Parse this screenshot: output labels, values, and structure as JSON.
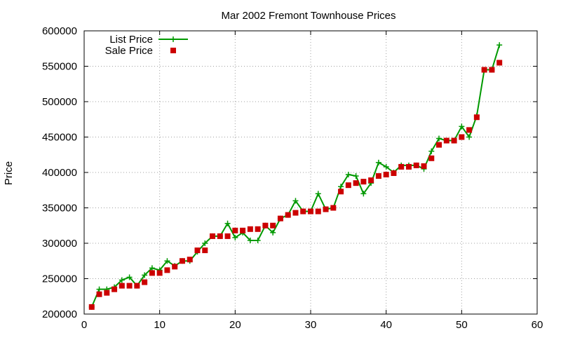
{
  "chart_data": {
    "type": "line",
    "title": "Mar 2002 Fremont Townhouse Prices",
    "xlabel": "",
    "ylabel": "Price",
    "xlim": [
      0,
      60
    ],
    "ylim": [
      200000,
      600000
    ],
    "xticks": [
      0,
      10,
      20,
      30,
      40,
      50,
      60
    ],
    "yticks": [
      200000,
      250000,
      300000,
      350000,
      400000,
      450000,
      500000,
      550000,
      600000
    ],
    "grid": true,
    "legend_position": "top-left",
    "series": [
      {
        "name": "List Price",
        "style": "line-plus",
        "color": "#009900",
        "x": [
          1,
          2,
          3,
          4,
          5,
          6,
          7,
          8,
          9,
          10,
          11,
          12,
          13,
          14,
          15,
          16,
          17,
          18,
          19,
          20,
          21,
          22,
          23,
          24,
          25,
          26,
          27,
          28,
          29,
          30,
          31,
          32,
          33,
          34,
          35,
          36,
          37,
          38,
          39,
          40,
          41,
          42,
          43,
          44,
          45,
          46,
          47,
          48,
          49,
          50,
          51,
          52,
          53,
          54,
          55
        ],
        "y": [
          210000,
          235000,
          235000,
          238000,
          248000,
          252000,
          240000,
          255000,
          265000,
          262000,
          275000,
          268000,
          275000,
          275000,
          288000,
          300000,
          310000,
          310000,
          328000,
          308000,
          315000,
          304000,
          304000,
          325000,
          315000,
          335000,
          340000,
          360000,
          345000,
          345000,
          370000,
          348000,
          350000,
          380000,
          397000,
          395000,
          370000,
          385000,
          414000,
          408000,
          400000,
          410000,
          410000,
          410000,
          405000,
          430000,
          448000,
          445000,
          445000,
          465000,
          450000,
          480000,
          545000,
          545000,
          580000
        ]
      },
      {
        "name": "Sale Price",
        "style": "square-marker",
        "color": "#cc0000",
        "x": [
          1,
          2,
          3,
          4,
          5,
          6,
          7,
          8,
          9,
          10,
          11,
          12,
          13,
          14,
          15,
          16,
          17,
          18,
          19,
          20,
          21,
          22,
          23,
          24,
          25,
          26,
          27,
          28,
          29,
          30,
          31,
          32,
          33,
          34,
          35,
          36,
          37,
          38,
          39,
          40,
          41,
          42,
          43,
          44,
          45,
          46,
          47,
          48,
          49,
          50,
          51,
          52,
          53,
          54,
          55
        ],
        "y": [
          210000,
          228000,
          230000,
          235000,
          240000,
          240000,
          240000,
          245000,
          258000,
          258000,
          262000,
          267000,
          275000,
          277000,
          290000,
          290000,
          310000,
          310000,
          310000,
          318000,
          318000,
          320000,
          320000,
          325000,
          325000,
          335000,
          340000,
          343000,
          345000,
          345000,
          345000,
          348000,
          350000,
          373000,
          382000,
          385000,
          387000,
          389000,
          395000,
          397000,
          399000,
          408000,
          408000,
          410000,
          409000,
          420000,
          439000,
          445000,
          445000,
          450000,
          460000,
          478000,
          545000,
          545000,
          555000
        ]
      }
    ]
  }
}
